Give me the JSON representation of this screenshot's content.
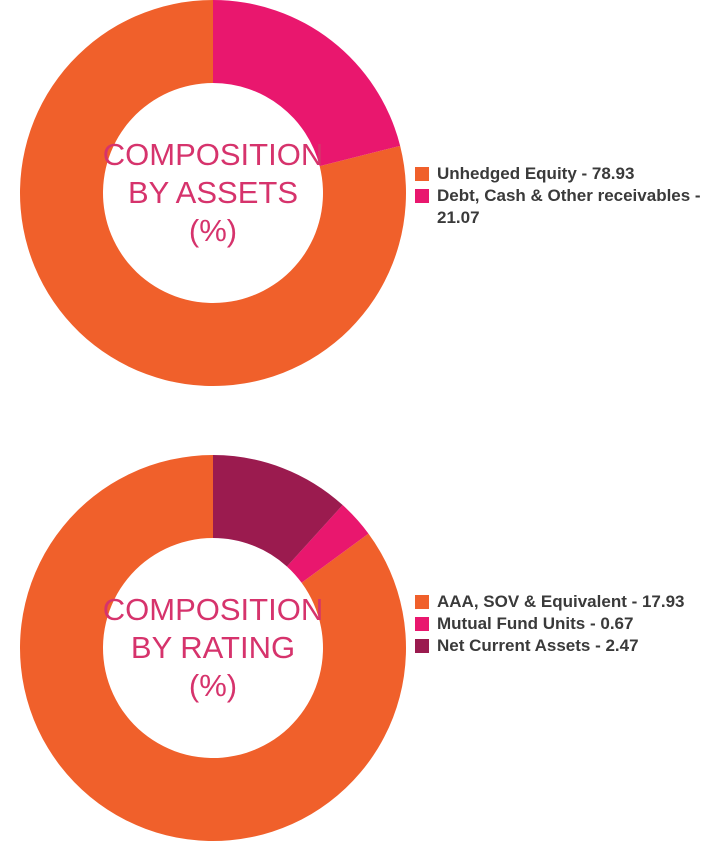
{
  "chart_data": [
    {
      "type": "pie",
      "center_text": [
        "COMPOSITION",
        "BY ASSETS",
        "(%)"
      ],
      "legend_position": "right",
      "series": [
        {
          "label": "Unhedged Equity - 78.93",
          "value": 78.93,
          "color": "#f0602b"
        },
        {
          "label": "Debt, Cash & Other receivables - 21.07",
          "value": 21.07,
          "color": "#e9176e"
        }
      ]
    },
    {
      "type": "pie",
      "center_text": [
        "COMPOSITION",
        "BY RATING",
        "(%)"
      ],
      "legend_position": "right",
      "series": [
        {
          "label": "AAA, SOV & Equivalent - 17.93",
          "value": 17.93,
          "color": "#f0602b"
        },
        {
          "label": "Mutual Fund Units - 0.67",
          "value": 0.67,
          "color": "#e9176e"
        },
        {
          "label": "Net Current Assets - 2.47",
          "value": 2.47,
          "color": "#9b1b4f"
        }
      ]
    }
  ]
}
